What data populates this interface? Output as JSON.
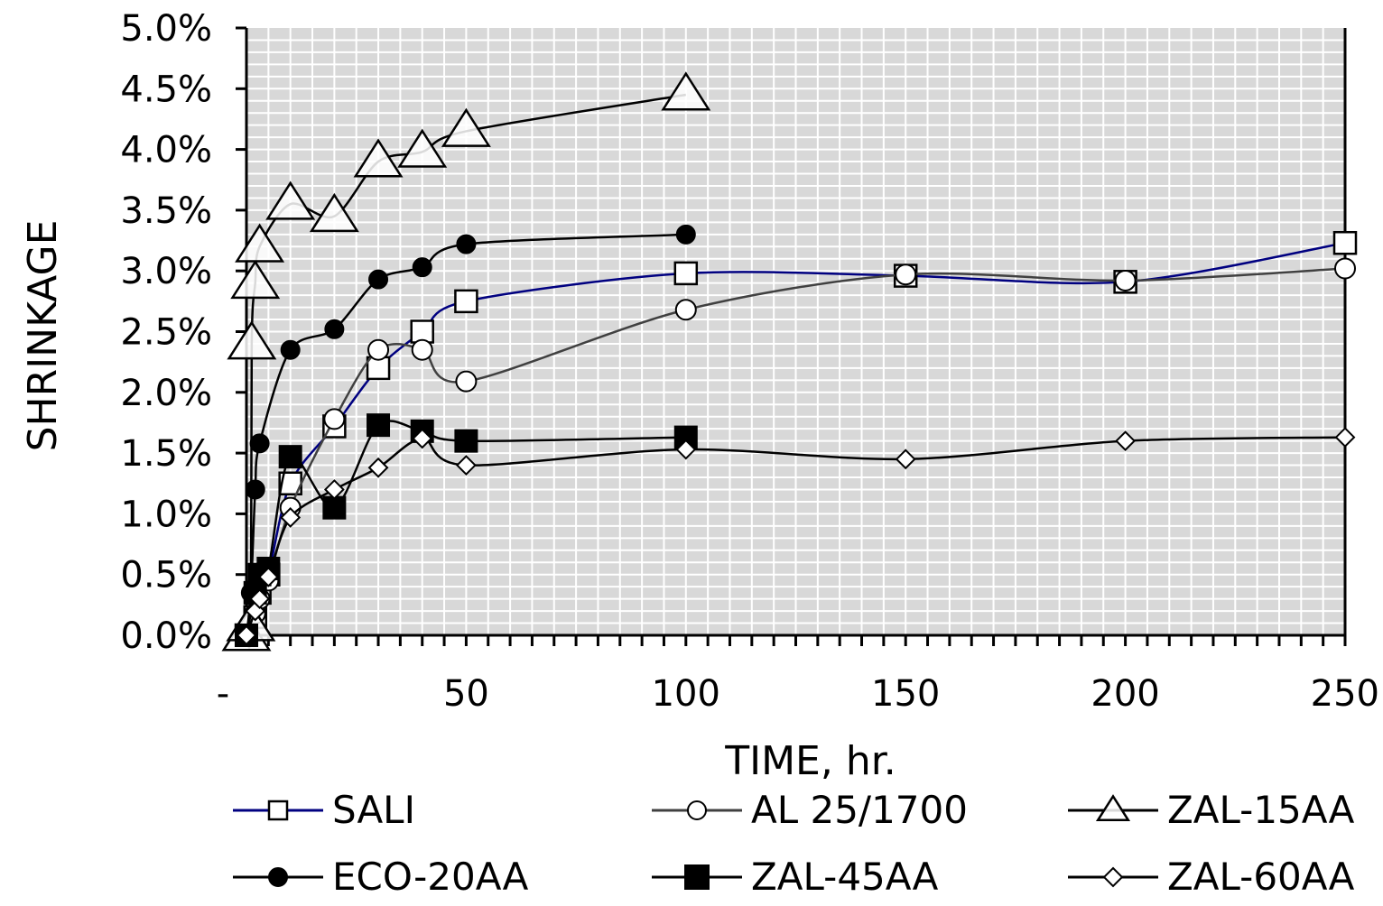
{
  "chart_data": {
    "type": "line",
    "xlabel": "TIME, hr.",
    "ylabel": "SHRINKAGE",
    "xlim": [
      0,
      250
    ],
    "ylim": [
      0,
      0.05
    ],
    "x_ticks": [
      0,
      50,
      100,
      150,
      200,
      250
    ],
    "x_tick_labels": [
      "-",
      "50",
      "100",
      "150",
      "200",
      "250"
    ],
    "y_ticks": [
      0,
      0.005,
      0.01,
      0.015,
      0.02,
      0.025,
      0.03,
      0.035,
      0.04,
      0.045,
      0.05
    ],
    "y_tick_labels": [
      "0.0%",
      "0.5%",
      "1.0%",
      "1.5%",
      "2.0%",
      "2.5%",
      "3.0%",
      "3.5%",
      "4.0%",
      "4.5%",
      "5.0%"
    ],
    "grid": true,
    "legend_position": "bottom",
    "series": [
      {
        "name": "SALI",
        "marker": "square-open",
        "color": "#000080",
        "x": [
          0,
          2,
          3,
          5,
          10,
          20,
          30,
          40,
          50,
          100,
          150,
          200,
          250
        ],
        "y": [
          0,
          0.0015,
          0.0035,
          0.005,
          0.0125,
          0.0172,
          0.022,
          0.025,
          0.0275,
          0.0298,
          0.0296,
          0.0291,
          0.0323
        ]
      },
      {
        "name": "AL 25/1700",
        "marker": "circle-open",
        "color": "#404040",
        "x": [
          0,
          2,
          3,
          5,
          10,
          20,
          30,
          40,
          50,
          100,
          150,
          200,
          250
        ],
        "y": [
          0,
          0.0018,
          0.003,
          0.0045,
          0.0105,
          0.0178,
          0.0235,
          0.0235,
          0.0209,
          0.0268,
          0.0297,
          0.0292,
          0.0302
        ]
      },
      {
        "name": "ZAL-15AA",
        "marker": "triangle-open",
        "color": "#000000",
        "x": [
          0,
          1,
          1.2,
          2,
          3,
          10,
          20,
          30,
          40,
          50,
          100
        ],
        "y": [
          0,
          0.0008,
          0.024,
          0.029,
          0.032,
          0.0355,
          0.0345,
          0.039,
          0.0398,
          0.0415,
          0.0445
        ]
      },
      {
        "name": "ECO-20AA",
        "marker": "circle-filled",
        "color": "#000000",
        "x": [
          0,
          1,
          2,
          3,
          10,
          20,
          30,
          40,
          50,
          100
        ],
        "y": [
          0,
          0.0035,
          0.012,
          0.0158,
          0.0235,
          0.0252,
          0.0293,
          0.0303,
          0.0322,
          0.033
        ]
      },
      {
        "name": "ZAL-45AA",
        "marker": "square-filled",
        "color": "#000000",
        "x": [
          0,
          2,
          3,
          5,
          10,
          20,
          30,
          40,
          50,
          100
        ],
        "y": [
          0,
          0.0035,
          0.005,
          0.0055,
          0.0147,
          0.0105,
          0.0173,
          0.0168,
          0.016,
          0.0163
        ]
      },
      {
        "name": "ZAL-60AA",
        "marker": "diamond-open",
        "color": "#000000",
        "x": [
          0,
          2,
          3,
          5,
          10,
          20,
          30,
          40,
          50,
          100,
          150,
          200,
          250
        ],
        "y": [
          0,
          0.002,
          0.003,
          0.0048,
          0.0097,
          0.012,
          0.0138,
          0.0162,
          0.014,
          0.0153,
          0.0145,
          0.016,
          0.0163
        ]
      }
    ]
  }
}
